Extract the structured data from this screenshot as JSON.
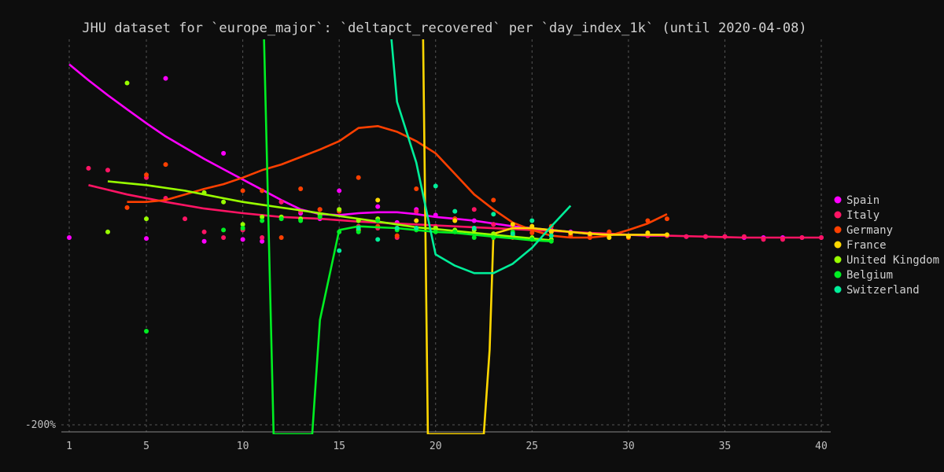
{
  "chart_data": {
    "type": "line",
    "title": "JHU dataset for `europe_major`: `deltapct_recovered` per `day_index_1k` (until 2020-04-08)",
    "xlabel": "",
    "ylabel": "",
    "x_ticks": [
      1,
      5,
      10,
      15,
      20,
      25,
      30,
      35,
      40
    ],
    "y_ticks": [
      {
        "value": -200,
        "label": "-200%"
      }
    ],
    "xlim": [
      0.2,
      40.5
    ],
    "ylim": [
      -203,
      210
    ],
    "grid": true,
    "legend_position": "right",
    "series": [
      {
        "name": "Spain",
        "color": "#ff00ff",
        "points": [
          [
            1,
            0
          ],
          [
            5,
            -1
          ],
          [
            6,
            170
          ],
          [
            8,
            -4
          ],
          [
            9,
            90
          ],
          [
            10,
            -2
          ],
          [
            11,
            -4
          ],
          [
            12,
            38
          ],
          [
            13,
            26
          ],
          [
            14,
            20
          ],
          [
            15,
            50
          ],
          [
            16,
            18
          ],
          [
            17,
            33
          ],
          [
            18,
            16
          ],
          [
            19,
            30
          ],
          [
            20,
            24
          ],
          [
            21,
            20
          ],
          [
            22,
            18
          ],
          [
            23,
            14
          ],
          [
            24,
            12
          ],
          [
            25,
            10
          ],
          [
            26,
            8
          ],
          [
            27,
            6
          ],
          [
            28,
            4
          ],
          [
            29,
            4
          ],
          [
            30,
            2
          ],
          [
            31,
            2
          ],
          [
            32,
            2
          ],
          [
            33,
            1
          ],
          [
            34,
            1
          ],
          [
            35,
            1
          ],
          [
            36,
            0
          ],
          [
            37,
            0
          ],
          [
            38,
            0
          ],
          [
            39,
            0
          ],
          [
            40,
            0
          ]
        ],
        "trend": [
          [
            1,
            185
          ],
          [
            2,
            168
          ],
          [
            3,
            152
          ],
          [
            4,
            137
          ],
          [
            5,
            122
          ],
          [
            6,
            108
          ],
          [
            7,
            96
          ],
          [
            8,
            84
          ],
          [
            9,
            73
          ],
          [
            10,
            62
          ],
          [
            11,
            51
          ],
          [
            12,
            40
          ],
          [
            13,
            30
          ],
          [
            14,
            25
          ],
          [
            15,
            24
          ],
          [
            16,
            26
          ],
          [
            17,
            27
          ],
          [
            18,
            27
          ],
          [
            19,
            25
          ],
          [
            20,
            22
          ],
          [
            21,
            20
          ],
          [
            22,
            18
          ],
          [
            23,
            15
          ],
          [
            24,
            12
          ],
          [
            25,
            10
          ],
          [
            26,
            8
          ],
          [
            27,
            6
          ],
          [
            28,
            4
          ],
          [
            29,
            4
          ],
          [
            30,
            3
          ],
          [
            31,
            2
          ],
          [
            32,
            2
          ]
        ]
      },
      {
        "name": "Italy",
        "color": "#ff1464",
        "points": [
          [
            2,
            74
          ],
          [
            3,
            72
          ],
          [
            5,
            64
          ],
          [
            6,
            42
          ],
          [
            7,
            20
          ],
          [
            8,
            6
          ],
          [
            9,
            0
          ],
          [
            10,
            8
          ],
          [
            11,
            0
          ],
          [
            12,
            38
          ],
          [
            13,
            28
          ],
          [
            14,
            30
          ],
          [
            15,
            30
          ],
          [
            16,
            12
          ],
          [
            17,
            10
          ],
          [
            18,
            0
          ],
          [
            19,
            28
          ],
          [
            20,
            12
          ],
          [
            21,
            20
          ],
          [
            22,
            30
          ],
          [
            23,
            14
          ],
          [
            24,
            10
          ],
          [
            25,
            8
          ],
          [
            26,
            6
          ],
          [
            27,
            4
          ],
          [
            28,
            2
          ],
          [
            29,
            6
          ],
          [
            30,
            1
          ],
          [
            31,
            2
          ],
          [
            32,
            2
          ],
          [
            33,
            1
          ],
          [
            34,
            1
          ],
          [
            35,
            1
          ],
          [
            36,
            1
          ],
          [
            37,
            -2
          ],
          [
            38,
            -2
          ],
          [
            39,
            0
          ],
          [
            40,
            0
          ]
        ],
        "trend": [
          [
            2,
            56
          ],
          [
            4,
            46
          ],
          [
            6,
            38
          ],
          [
            8,
            31
          ],
          [
            10,
            26
          ],
          [
            12,
            22
          ],
          [
            14,
            20
          ],
          [
            16,
            17
          ],
          [
            18,
            15
          ],
          [
            20,
            13
          ],
          [
            22,
            11
          ],
          [
            24,
            9
          ],
          [
            26,
            7
          ],
          [
            28,
            5
          ],
          [
            30,
            3
          ],
          [
            32,
            2
          ],
          [
            34,
            1
          ],
          [
            36,
            0
          ],
          [
            38,
            0
          ],
          [
            40,
            0
          ]
        ]
      },
      {
        "name": "Germany",
        "color": "#ff4000",
        "points": [
          [
            4,
            32
          ],
          [
            5,
            67
          ],
          [
            6,
            78
          ],
          [
            10,
            50
          ],
          [
            11,
            50
          ],
          [
            12,
            0
          ],
          [
            13,
            52
          ],
          [
            14,
            30
          ],
          [
            15,
            28
          ],
          [
            16,
            64
          ],
          [
            17,
            12
          ],
          [
            18,
            2
          ],
          [
            19,
            52
          ],
          [
            20,
            10
          ],
          [
            21,
            20
          ],
          [
            22,
            10
          ],
          [
            23,
            40
          ],
          [
            24,
            0
          ],
          [
            25,
            5
          ],
          [
            26,
            12
          ],
          [
            27,
            2
          ],
          [
            28,
            0
          ],
          [
            29,
            6
          ],
          [
            30,
            0
          ],
          [
            31,
            18
          ],
          [
            32,
            20
          ]
        ],
        "trend": [
          [
            4,
            38
          ],
          [
            5,
            38
          ],
          [
            6,
            40
          ],
          [
            7,
            46
          ],
          [
            8,
            52
          ],
          [
            9,
            57
          ],
          [
            10,
            64
          ],
          [
            11,
            72
          ],
          [
            12,
            78
          ],
          [
            13,
            86
          ],
          [
            14,
            94
          ],
          [
            15,
            103
          ],
          [
            16,
            117
          ],
          [
            17,
            119
          ],
          [
            18,
            113
          ],
          [
            19,
            103
          ],
          [
            20,
            90
          ],
          [
            21,
            68
          ],
          [
            22,
            46
          ],
          [
            23,
            30
          ],
          [
            24,
            16
          ],
          [
            25,
            8
          ],
          [
            26,
            2
          ],
          [
            27,
            0
          ],
          [
            28,
            0
          ],
          [
            29,
            2
          ],
          [
            30,
            8
          ],
          [
            31,
            15
          ],
          [
            32,
            25
          ]
        ]
      },
      {
        "name": "France",
        "color": "#ffd700",
        "points": [
          [
            16,
            8
          ],
          [
            17,
            40
          ],
          [
            19,
            18
          ],
          [
            20,
            10
          ],
          [
            21,
            18
          ],
          [
            23,
            4
          ],
          [
            24,
            14
          ],
          [
            25,
            12
          ],
          [
            26,
            6
          ],
          [
            27,
            5
          ],
          [
            28,
            4
          ],
          [
            29,
            0
          ],
          [
            30,
            1
          ],
          [
            31,
            5
          ],
          [
            32,
            3
          ]
        ],
        "trend": [
          [
            19.2,
            400
          ],
          [
            19.3,
            300
          ],
          [
            19.6,
            -210
          ],
          [
            22.5,
            -210
          ],
          [
            22.8,
            -120
          ],
          [
            23,
            4
          ],
          [
            24,
            10
          ],
          [
            25,
            10
          ],
          [
            26,
            8
          ],
          [
            27,
            6
          ],
          [
            28,
            4
          ],
          [
            29,
            3
          ],
          [
            30,
            3
          ],
          [
            31,
            3
          ],
          [
            32,
            3
          ]
        ]
      },
      {
        "name": "United Kingdom",
        "color": "#99ff00",
        "points": [
          [
            3,
            6
          ],
          [
            4,
            165
          ],
          [
            5,
            20
          ],
          [
            8,
            48
          ],
          [
            9,
            38
          ],
          [
            10,
            14
          ],
          [
            11,
            22
          ],
          [
            12,
            22
          ],
          [
            13,
            20
          ],
          [
            14,
            24
          ],
          [
            15,
            30
          ],
          [
            16,
            18
          ],
          [
            17,
            20
          ],
          [
            18,
            10
          ],
          [
            19,
            10
          ],
          [
            20,
            10
          ],
          [
            21,
            8
          ],
          [
            22,
            8
          ],
          [
            23,
            4
          ],
          [
            24,
            2
          ],
          [
            25,
            0
          ],
          [
            26,
            -2
          ]
        ],
        "trend": [
          [
            3,
            60
          ],
          [
            4,
            58
          ],
          [
            5,
            56
          ],
          [
            6,
            53
          ],
          [
            7,
            50
          ],
          [
            8,
            46
          ],
          [
            9,
            42
          ],
          [
            10,
            38
          ],
          [
            11,
            35
          ],
          [
            12,
            32
          ],
          [
            13,
            29
          ],
          [
            14,
            26
          ],
          [
            15,
            23
          ],
          [
            16,
            20
          ],
          [
            17,
            17
          ],
          [
            18,
            14
          ],
          [
            19,
            11
          ],
          [
            20,
            9
          ],
          [
            21,
            7
          ],
          [
            22,
            5
          ],
          [
            23,
            3
          ],
          [
            24,
            1
          ],
          [
            25,
            -1
          ],
          [
            26,
            -3
          ]
        ]
      },
      {
        "name": "Belgium",
        "color": "#00ee22",
        "points": [
          [
            5,
            -100
          ],
          [
            9,
            8
          ],
          [
            10,
            10
          ],
          [
            11,
            18
          ],
          [
            12,
            20
          ],
          [
            13,
            18
          ],
          [
            14,
            22
          ],
          [
            15,
            6
          ],
          [
            16,
            6
          ],
          [
            17,
            18
          ],
          [
            18,
            8
          ],
          [
            19,
            8
          ],
          [
            20,
            6
          ],
          [
            21,
            6
          ],
          [
            22,
            0
          ],
          [
            23,
            0
          ],
          [
            24,
            6
          ],
          [
            25,
            -2
          ],
          [
            26,
            -4
          ]
        ],
        "trend": [
          [
            10.6,
            400
          ],
          [
            11,
            300
          ],
          [
            11.6,
            -210
          ],
          [
            13.6,
            -210
          ],
          [
            14,
            -88
          ],
          [
            15,
            8
          ],
          [
            16,
            12
          ],
          [
            17,
            11
          ],
          [
            18,
            10
          ],
          [
            19,
            8
          ],
          [
            20,
            6
          ],
          [
            21,
            5
          ],
          [
            22,
            3
          ],
          [
            23,
            1
          ],
          [
            24,
            -1
          ],
          [
            25,
            -3
          ],
          [
            26,
            -4
          ]
        ]
      },
      {
        "name": "Switzerland",
        "color": "#00ee99",
        "points": [
          [
            15,
            -14
          ],
          [
            16,
            10
          ],
          [
            17,
            -2
          ],
          [
            18,
            10
          ],
          [
            19,
            10
          ],
          [
            20,
            55
          ],
          [
            21,
            28
          ],
          [
            22,
            10
          ],
          [
            23,
            25
          ],
          [
            24,
            4
          ],
          [
            25,
            18
          ],
          [
            26,
            2
          ]
        ],
        "trend": [
          [
            17.2,
            400
          ],
          [
            17.5,
            260
          ],
          [
            18,
            145
          ],
          [
            19,
            80
          ],
          [
            20,
            -18
          ],
          [
            21,
            -30
          ],
          [
            22,
            -38
          ],
          [
            23,
            -38
          ],
          [
            24,
            -28
          ],
          [
            25,
            -11
          ],
          [
            26,
            12
          ],
          [
            27,
            34
          ]
        ]
      }
    ]
  }
}
